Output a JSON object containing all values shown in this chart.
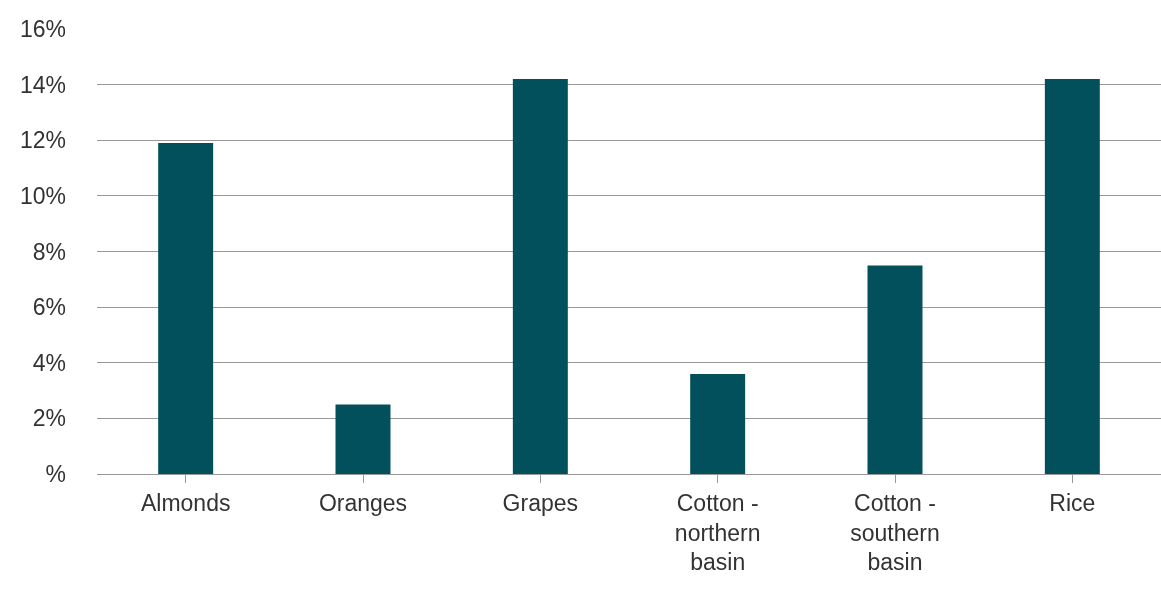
{
  "chart_data": {
    "type": "bar",
    "categories": [
      "Almonds",
      "Oranges",
      "Grapes",
      "Cotton - northern basin",
      "Cotton - southern basin",
      "Rice"
    ],
    "values": [
      11.9,
      2.5,
      14.2,
      3.6,
      7.5,
      14.2
    ],
    "color": "#01505c",
    "ylim": [
      0,
      16
    ],
    "yticks": [
      {
        "value": 0,
        "label": "%"
      },
      {
        "value": 2,
        "label": "2%"
      },
      {
        "value": 4,
        "label": "4%"
      },
      {
        "value": 6,
        "label": "6%"
      },
      {
        "value": 8,
        "label": "8%"
      },
      {
        "value": 10,
        "label": "10%"
      },
      {
        "value": 12,
        "label": "12%"
      },
      {
        "value": 14,
        "label": "14%"
      },
      {
        "value": 16,
        "label": "16%"
      }
    ],
    "grid": "y",
    "legend": false
  }
}
